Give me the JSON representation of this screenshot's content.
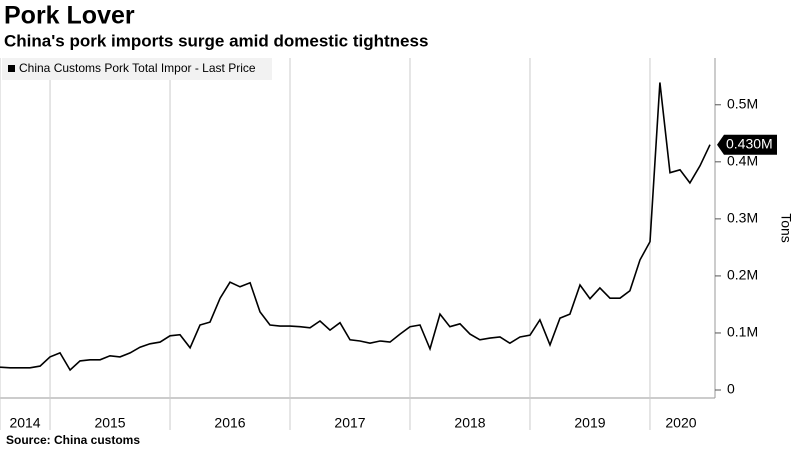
{
  "chart_data": {
    "type": "line",
    "title": "Pork Lover",
    "subtitle": "China's pork imports surge amid domestic tightness",
    "source": "Source: China customs",
    "y_label": "Tons",
    "last_price_label": "0.430M",
    "xlim": [
      2014.583,
      2020.517
    ],
    "xticks": [
      {
        "value": 2014.583,
        "label": "2014"
      },
      {
        "value": 2015,
        "label": "2015"
      },
      {
        "value": 2016,
        "label": "2016"
      },
      {
        "value": 2017,
        "label": "2017"
      },
      {
        "value": 2018,
        "label": "2018"
      },
      {
        "value": 2019,
        "label": "2019"
      },
      {
        "value": 2020,
        "label": "2020"
      }
    ],
    "ylim": [
      -14000,
      582000
    ],
    "yticks": [
      0,
      {
        "value": 100000,
        "label": "0.1M"
      },
      {
        "value": 200000,
        "label": "0.2M"
      },
      {
        "value": 300000,
        "label": "0.3M"
      },
      {
        "value": 400000,
        "label": "0.4M"
      },
      {
        "value": 500000,
        "label": "0.5M"
      }
    ],
    "x": [
      2014.583,
      2014.667,
      2014.75,
      2014.833,
      2014.917,
      2015.0,
      2015.083,
      2015.167,
      2015.25,
      2015.333,
      2015.417,
      2015.5,
      2015.583,
      2015.667,
      2015.75,
      2015.833,
      2015.917,
      2016.0,
      2016.083,
      2016.167,
      2016.25,
      2016.333,
      2016.417,
      2016.5,
      2016.583,
      2016.667,
      2016.75,
      2016.833,
      2016.917,
      2017.0,
      2017.083,
      2017.167,
      2017.25,
      2017.333,
      2017.417,
      2017.5,
      2017.583,
      2017.667,
      2017.75,
      2017.833,
      2017.917,
      2018.0,
      2018.083,
      2018.167,
      2018.25,
      2018.333,
      2018.417,
      2018.5,
      2018.583,
      2018.667,
      2018.75,
      2018.833,
      2018.917,
      2019.0,
      2019.083,
      2019.167,
      2019.25,
      2019.333,
      2019.417,
      2019.5,
      2019.583,
      2019.667,
      2019.75,
      2019.833,
      2019.917,
      2020.0,
      2020.083,
      2020.167,
      2020.25,
      2020.333,
      2020.417,
      2020.5
    ],
    "series": [
      {
        "name": "China Customs Pork Total Impor - Last Price",
        "color": "#000000",
        "values": [
          40000,
          39000,
          39000,
          39000,
          42000,
          58000,
          65000,
          35000,
          51000,
          53000,
          53000,
          60000,
          58000,
          65000,
          75000,
          81000,
          84000,
          95000,
          97000,
          74000,
          114000,
          119000,
          161000,
          189000,
          181000,
          188000,
          137000,
          114000,
          112000,
          112000,
          111000,
          109000,
          121000,
          105000,
          118000,
          88000,
          86000,
          82000,
          86000,
          84000,
          98000,
          111000,
          114000,
          72000,
          133000,
          111000,
          116000,
          98000,
          88000,
          91000,
          93000,
          82000,
          93000,
          96000,
          123000,
          79000,
          126000,
          133000,
          184000,
          160000,
          179000,
          161000,
          161000,
          174000,
          228000,
          260000,
          539000,
          381000,
          386000,
          363000,
          393000,
          430000
        ]
      }
    ]
  }
}
